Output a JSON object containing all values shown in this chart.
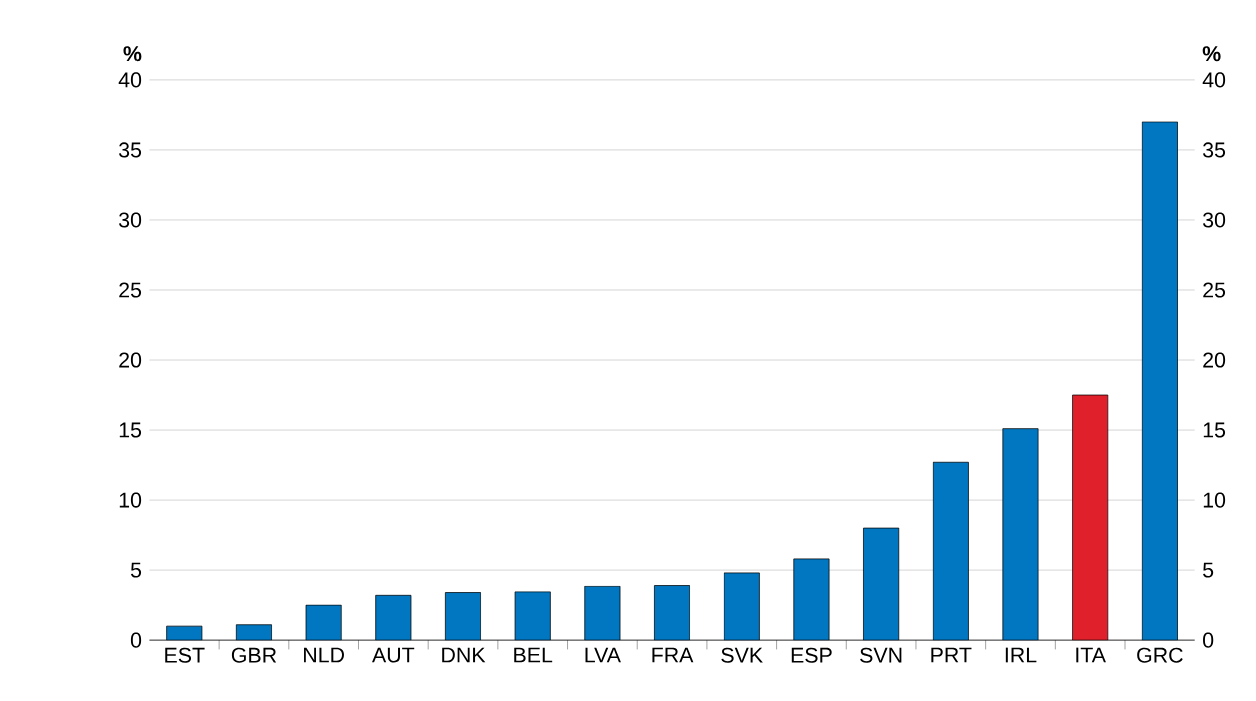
{
  "chart_data": {
    "type": "bar",
    "categories": [
      "EST",
      "GBR",
      "NLD",
      "AUT",
      "DNK",
      "BEL",
      "LVA",
      "FRA",
      "SVK",
      "ESP",
      "SVN",
      "PRT",
      "IRL",
      "ITA",
      "GRC"
    ],
    "values": [
      1.0,
      1.1,
      2.5,
      3.2,
      3.4,
      3.45,
      3.85,
      3.9,
      4.8,
      5.8,
      8.0,
      12.7,
      15.1,
      17.5,
      37.0
    ],
    "colors": [
      "#0077c0",
      "#0077c0",
      "#0077c0",
      "#0077c0",
      "#0077c0",
      "#0077c0",
      "#0077c0",
      "#0077c0",
      "#0077c0",
      "#0077c0",
      "#0077c0",
      "#0077c0",
      "#0077c0",
      "#e0202a",
      "#0077c0"
    ],
    "ylabel": "%",
    "y2label": "%",
    "ylim": [
      0,
      40
    ],
    "yticks": [
      0,
      5,
      10,
      15,
      20,
      25,
      30,
      35,
      40
    ],
    "y2lim": [
      0,
      40
    ],
    "y2ticks": [
      0,
      5,
      10,
      15,
      20,
      25,
      30,
      35,
      40
    ],
    "grid": "y"
  }
}
